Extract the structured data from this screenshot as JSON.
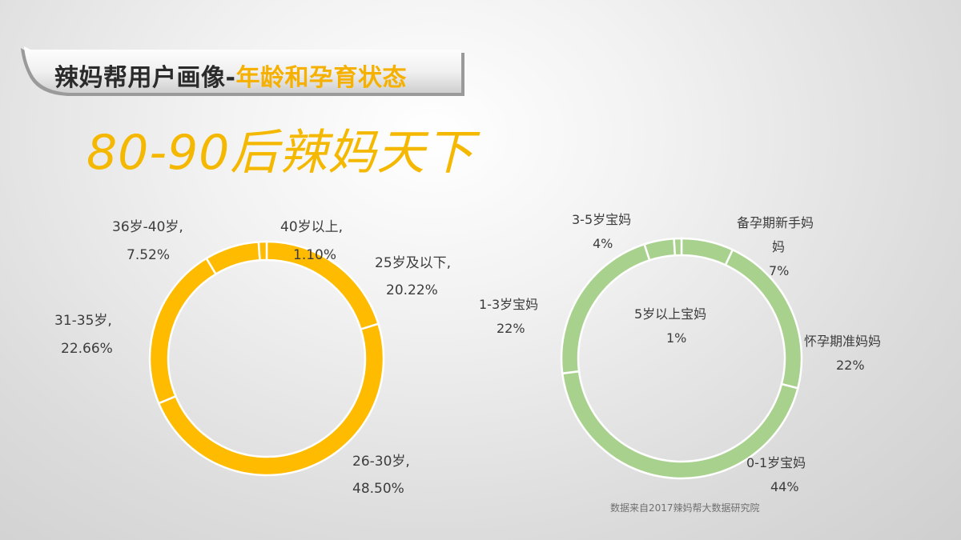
{
  "title": {
    "main": "辣妈帮用户画像-",
    "accent": "年龄和孕育状态"
  },
  "headline": "80-90后辣妈天下",
  "source": "数据来自2017辣妈帮大数据研究院",
  "colors": {
    "age_ring": "#ffbb00",
    "status_ring": "#a9d18e",
    "accent": "#f5b000"
  },
  "chart_data": [
    {
      "type": "pie",
      "donut": true,
      "title": "",
      "slices": [
        {
          "label": "25岁及以下,",
          "value": 20.22,
          "value_text": "20.22%"
        },
        {
          "label": "26-30岁,",
          "value": 48.5,
          "value_text": "48.50%"
        },
        {
          "label": "31-35岁,",
          "value": 22.66,
          "value_text": "22.66%"
        },
        {
          "label": "36岁-40岁,",
          "value": 7.52,
          "value_text": "7.52%"
        },
        {
          "label": "40岁以上,",
          "value": 1.1,
          "value_text": "1.10%"
        }
      ]
    },
    {
      "type": "pie",
      "donut": true,
      "title": "",
      "slices": [
        {
          "label": "备孕期新手妈妈",
          "value": 7,
          "value_text": "7%"
        },
        {
          "label": "怀孕期准妈妈",
          "value": 22,
          "value_text": "22%"
        },
        {
          "label": "0-1岁宝妈",
          "value": 44,
          "value_text": "44%"
        },
        {
          "label": "1-3岁宝妈",
          "value": 22,
          "value_text": "22%"
        },
        {
          "label": "3-5岁宝妈",
          "value": 4,
          "value_text": "4%"
        },
        {
          "label": "5岁以上宝妈",
          "value": 1,
          "value_text": "1%"
        }
      ]
    }
  ]
}
